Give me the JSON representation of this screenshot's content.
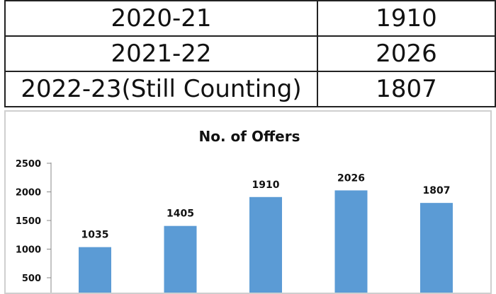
{
  "table": {
    "rows": [
      {
        "year": "2020-21",
        "value": "1910"
      },
      {
        "year": "2021-22",
        "value": "2026"
      },
      {
        "year": "2022-23(Still Counting)",
        "value": "1807"
      }
    ]
  },
  "chart_data": {
    "type": "bar",
    "title": "No. of Offers",
    "values": [
      1035,
      1405,
      1910,
      2026,
      1807
    ],
    "data_labels": [
      "1035",
      "1405",
      "1910",
      "2026",
      "1807"
    ],
    "y_ticks": [
      "2500",
      "2000",
      "1500",
      "1000",
      "500"
    ],
    "ylim": [
      0,
      2500
    ],
    "grid": false,
    "legend": "none",
    "bar_color": "#5b9bd5"
  }
}
